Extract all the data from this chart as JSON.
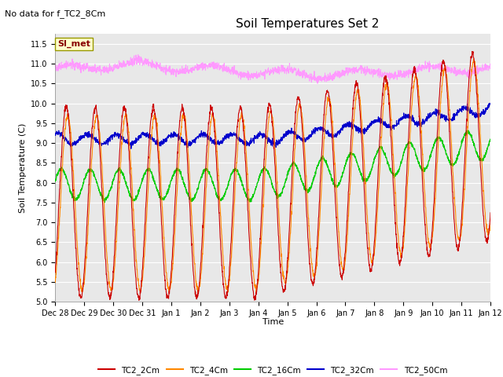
{
  "title": "Soil Temperatures Set 2",
  "no_data_label": "No data for f_TC2_8Cm",
  "ylabel": "Soil Temperature (C)",
  "xlabel": "Time",
  "ylim": [
    5.0,
    11.75
  ],
  "yticks": [
    5.0,
    5.5,
    6.0,
    6.5,
    7.0,
    7.5,
    8.0,
    8.5,
    9.0,
    9.5,
    10.0,
    10.5,
    11.0,
    11.5
  ],
  "xtick_labels": [
    "Dec 28",
    "Dec 29",
    "Dec 30",
    "Dec 31",
    "Jan 1",
    "Jan 2",
    "Jan 3",
    "Jan 4",
    "Jan 5",
    "Jan 6",
    "Jan 7",
    "Jan 8",
    "Jan 9",
    "Jan 10",
    "Jan 11",
    "Jan 12"
  ],
  "legend_entries": [
    "TC2_2Cm",
    "TC2_4Cm",
    "TC2_16Cm",
    "TC2_32Cm",
    "TC2_50Cm"
  ],
  "colors": [
    "#cc0000",
    "#ff8800",
    "#00cc00",
    "#0000cc",
    "#ff99ff"
  ],
  "si_met_label": "SI_met",
  "si_met_box_color": "#ffffcc",
  "si_met_text_color": "#880000",
  "background_color": "#e8e8e8",
  "fig_background": "#ffffff",
  "title_fontsize": 11,
  "axis_fontsize": 8,
  "tick_fontsize": 7
}
